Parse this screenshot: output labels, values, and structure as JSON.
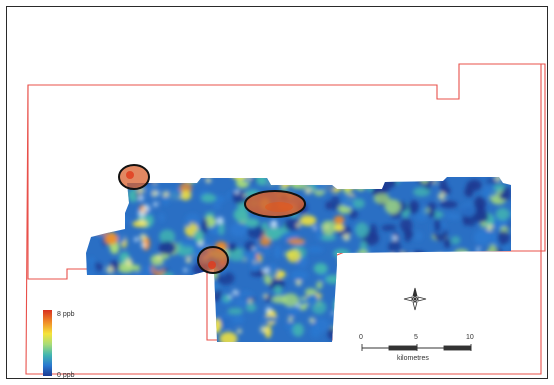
{
  "map": {
    "colors": {
      "boundary": "#e8504a",
      "anomaly_fill": "#d8602e",
      "anomaly_outline": "#111111",
      "ramp": [
        "#d83020",
        "#f08a28",
        "#f5e43a",
        "#a8dc78",
        "#42b6b0",
        "#2a78d0",
        "#1c3a92"
      ]
    },
    "anomalies_count": 3,
    "legend": {
      "max_label": "8 ppb",
      "min_label": "0 ppb"
    },
    "north_arrow": {
      "icon": "compass-rose-icon"
    },
    "scale_bar": {
      "ticks": [
        "0",
        "5",
        "10"
      ],
      "unit_label": "kilometres"
    }
  }
}
